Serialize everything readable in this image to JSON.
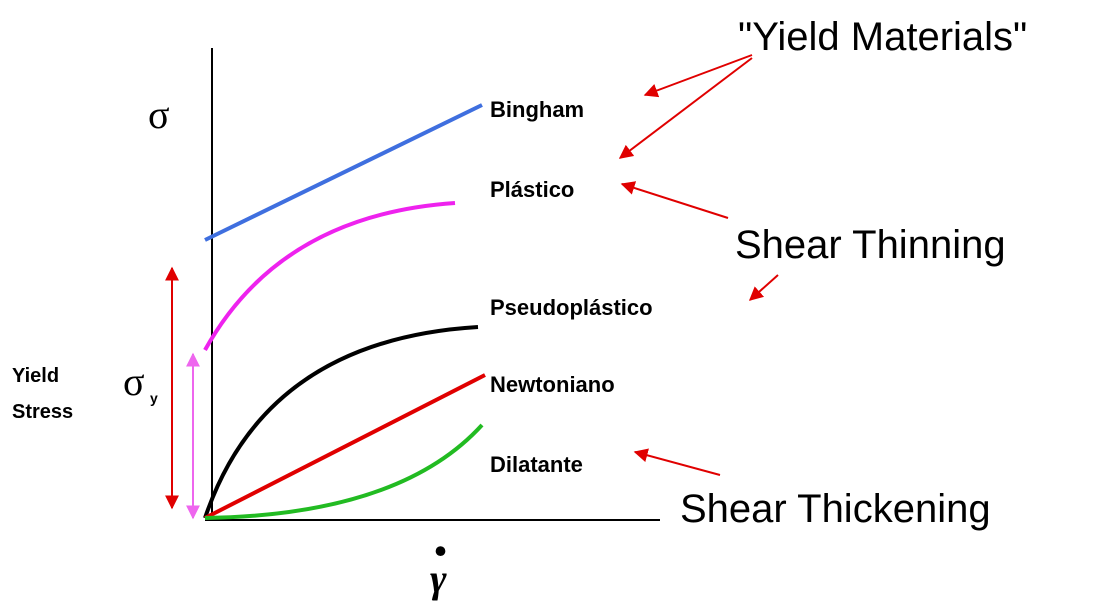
{
  "diagram": {
    "axes": {
      "y_symbol": "σ",
      "x_symbol": "γ",
      "x_dot": "."
    },
    "curves": [
      {
        "label": "Bingham"
      },
      {
        "label": "Plástico"
      },
      {
        "label": "Pseudoplástico"
      },
      {
        "label": "Newtoniano"
      },
      {
        "label": "Dilatante"
      }
    ],
    "groups": [
      "\"Yield Materials\"",
      "Shear Thinning",
      "Shear Thickening"
    ],
    "yield_stress": {
      "line1": "Yield",
      "line2": "Stress",
      "symbol": "σ",
      "subscript": "y"
    }
  }
}
